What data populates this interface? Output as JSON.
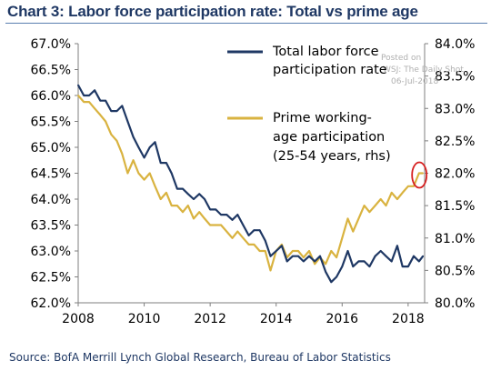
{
  "title": "Chart 3: Labor force participation rate: Total vs prime age",
  "source": "Source:  BofA Merrill Lynch Global Research, Bureau of Labor Statistics",
  "watermark": [
    "Posted on",
    "WSJ: The Daily Shot",
    "06-Jul-2018"
  ],
  "colors": {
    "total": "#1f3864",
    "prime": "#d9b340",
    "highlight": "#d62020",
    "axis": "#7f7f7f"
  },
  "chart_data": {
    "type": "line",
    "title": "Chart 3: Labor force participation rate: Total vs prime age",
    "x_ticks": [
      "2008",
      "2010",
      "2012",
      "2014",
      "2016",
      "2018"
    ],
    "xlim": [
      2008,
      2018.5
    ],
    "y_left": {
      "lim": [
        62.0,
        67.0
      ],
      "ticks": [
        "62.0%",
        "62.5%",
        "63.0%",
        "63.5%",
        "64.0%",
        "64.5%",
        "65.0%",
        "65.5%",
        "66.0%",
        "66.5%",
        "67.0%"
      ]
    },
    "y_right": {
      "lim": [
        80.0,
        84.0
      ],
      "ticks": [
        "80.0%",
        "80.5%",
        "81.0%",
        "81.5%",
        "82.0%",
        "82.5%",
        "83.0%",
        "83.5%",
        "84.0%"
      ]
    },
    "grid": false,
    "legend_position": "top-right",
    "series": [
      {
        "name": "Total labor force participation rate",
        "axis": "left",
        "x": [
          2008.0,
          2008.17,
          2008.33,
          2008.5,
          2008.67,
          2008.83,
          2009.0,
          2009.17,
          2009.33,
          2009.5,
          2009.67,
          2009.83,
          2010.0,
          2010.17,
          2010.33,
          2010.5,
          2010.67,
          2010.83,
          2011.0,
          2011.17,
          2011.33,
          2011.5,
          2011.67,
          2011.83,
          2012.0,
          2012.17,
          2012.33,
          2012.5,
          2012.67,
          2012.83,
          2013.0,
          2013.17,
          2013.33,
          2013.5,
          2013.67,
          2013.83,
          2014.0,
          2014.17,
          2014.33,
          2014.5,
          2014.67,
          2014.83,
          2015.0,
          2015.17,
          2015.33,
          2015.5,
          2015.67,
          2015.83,
          2016.0,
          2016.17,
          2016.33,
          2016.5,
          2016.67,
          2016.83,
          2017.0,
          2017.17,
          2017.33,
          2017.5,
          2017.67,
          2017.83,
          2018.0,
          2018.17,
          2018.33,
          2018.45
        ],
        "values": [
          66.2,
          66.0,
          66.0,
          66.1,
          65.9,
          65.9,
          65.7,
          65.7,
          65.8,
          65.5,
          65.2,
          65.0,
          64.8,
          65.0,
          65.1,
          64.7,
          64.7,
          64.5,
          64.2,
          64.2,
          64.1,
          64.0,
          64.1,
          64.0,
          63.8,
          63.8,
          63.7,
          63.7,
          63.6,
          63.7,
          63.5,
          63.3,
          63.4,
          63.4,
          63.2,
          62.9,
          63.0,
          63.1,
          62.8,
          62.9,
          62.9,
          62.8,
          62.9,
          62.8,
          62.9,
          62.6,
          62.4,
          62.5,
          62.7,
          63.0,
          62.7,
          62.8,
          62.8,
          62.7,
          62.9,
          63.0,
          62.9,
          62.8,
          63.1,
          62.7,
          62.7,
          62.9,
          62.8,
          62.9
        ]
      },
      {
        "name": "Prime working-age participation (25-54 years, rhs)",
        "axis": "right",
        "x": [
          2008.0,
          2008.17,
          2008.33,
          2008.5,
          2008.67,
          2008.83,
          2009.0,
          2009.17,
          2009.33,
          2009.5,
          2009.67,
          2009.83,
          2010.0,
          2010.17,
          2010.33,
          2010.5,
          2010.67,
          2010.83,
          2011.0,
          2011.17,
          2011.33,
          2011.5,
          2011.67,
          2011.83,
          2012.0,
          2012.17,
          2012.33,
          2012.5,
          2012.67,
          2012.83,
          2013.0,
          2013.17,
          2013.33,
          2013.5,
          2013.67,
          2013.83,
          2014.0,
          2014.17,
          2014.33,
          2014.5,
          2014.67,
          2014.83,
          2015.0,
          2015.17,
          2015.33,
          2015.5,
          2015.67,
          2015.83,
          2016.0,
          2016.17,
          2016.33,
          2016.5,
          2016.67,
          2016.83,
          2017.0,
          2017.17,
          2017.33,
          2017.5,
          2017.67,
          2017.83,
          2018.0,
          2018.17,
          2018.33,
          2018.45
        ],
        "values": [
          83.2,
          83.1,
          83.1,
          83.0,
          82.9,
          82.8,
          82.6,
          82.5,
          82.3,
          82.0,
          82.2,
          82.0,
          81.9,
          82.0,
          81.8,
          81.6,
          81.7,
          81.5,
          81.5,
          81.4,
          81.5,
          81.3,
          81.4,
          81.3,
          81.2,
          81.2,
          81.2,
          81.1,
          81.0,
          81.1,
          81.0,
          80.9,
          80.9,
          80.8,
          80.8,
          80.5,
          80.8,
          80.9,
          80.7,
          80.8,
          80.8,
          80.7,
          80.8,
          80.6,
          80.7,
          80.6,
          80.8,
          80.7,
          81.0,
          81.3,
          81.1,
          81.3,
          81.5,
          81.4,
          81.5,
          81.6,
          81.5,
          81.7,
          81.6,
          81.7,
          81.8,
          81.8,
          82.0,
          82.0
        ]
      }
    ]
  }
}
